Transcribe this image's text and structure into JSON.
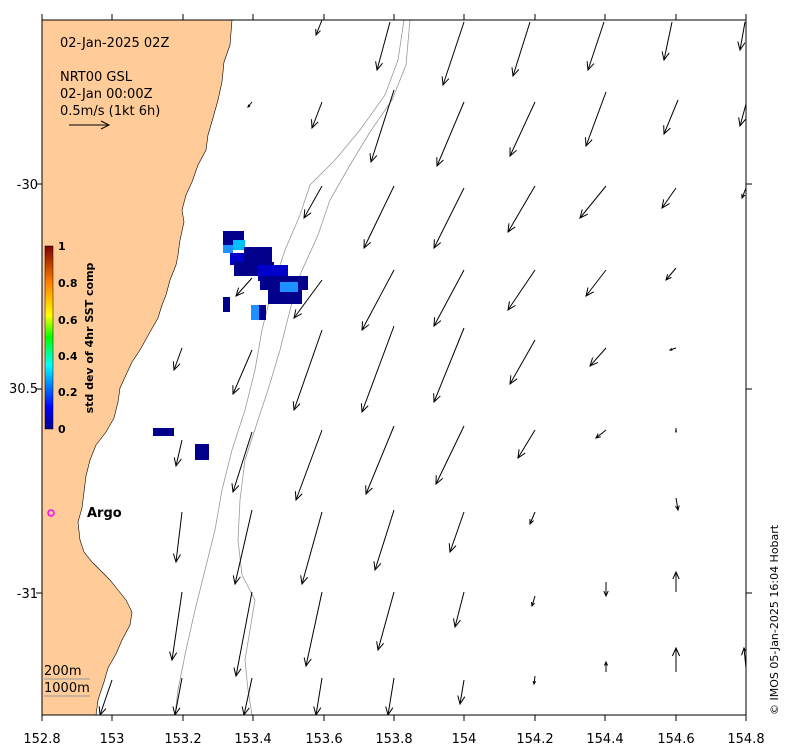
{
  "title": "02-Jan-2025 02Z",
  "product": "NRT00 GSL",
  "product_time": "02-Jan 00:00Z",
  "scale_label": "0.5m/s (1kt 6h)",
  "argo_label": "Argo",
  "depth_labels": [
    "200m",
    "1000m"
  ],
  "credit": "© IMOS 05-Jan-2025 16:04 Hobart",
  "colorbar": {
    "label": "std dev of 4hr SST comp",
    "ticks": [
      "1",
      "0.8",
      "0.6",
      "0.4",
      "0.2",
      "0"
    ]
  },
  "axes": {
    "x_ticks": [
      "152.8",
      "153",
      "153.2",
      "153.4",
      "153.6",
      "153.8",
      "154",
      "154.2",
      "154.4",
      "154.6",
      "154.8"
    ],
    "y_ticks": [
      "-30",
      "30.5",
      "-31"
    ]
  },
  "colors": {
    "land": "#FFCC99",
    "argo": "#FF00FF",
    "sst_dark": "#00008B",
    "sst_mid": "#0000CD",
    "sst_light": "#1E90FF"
  }
}
